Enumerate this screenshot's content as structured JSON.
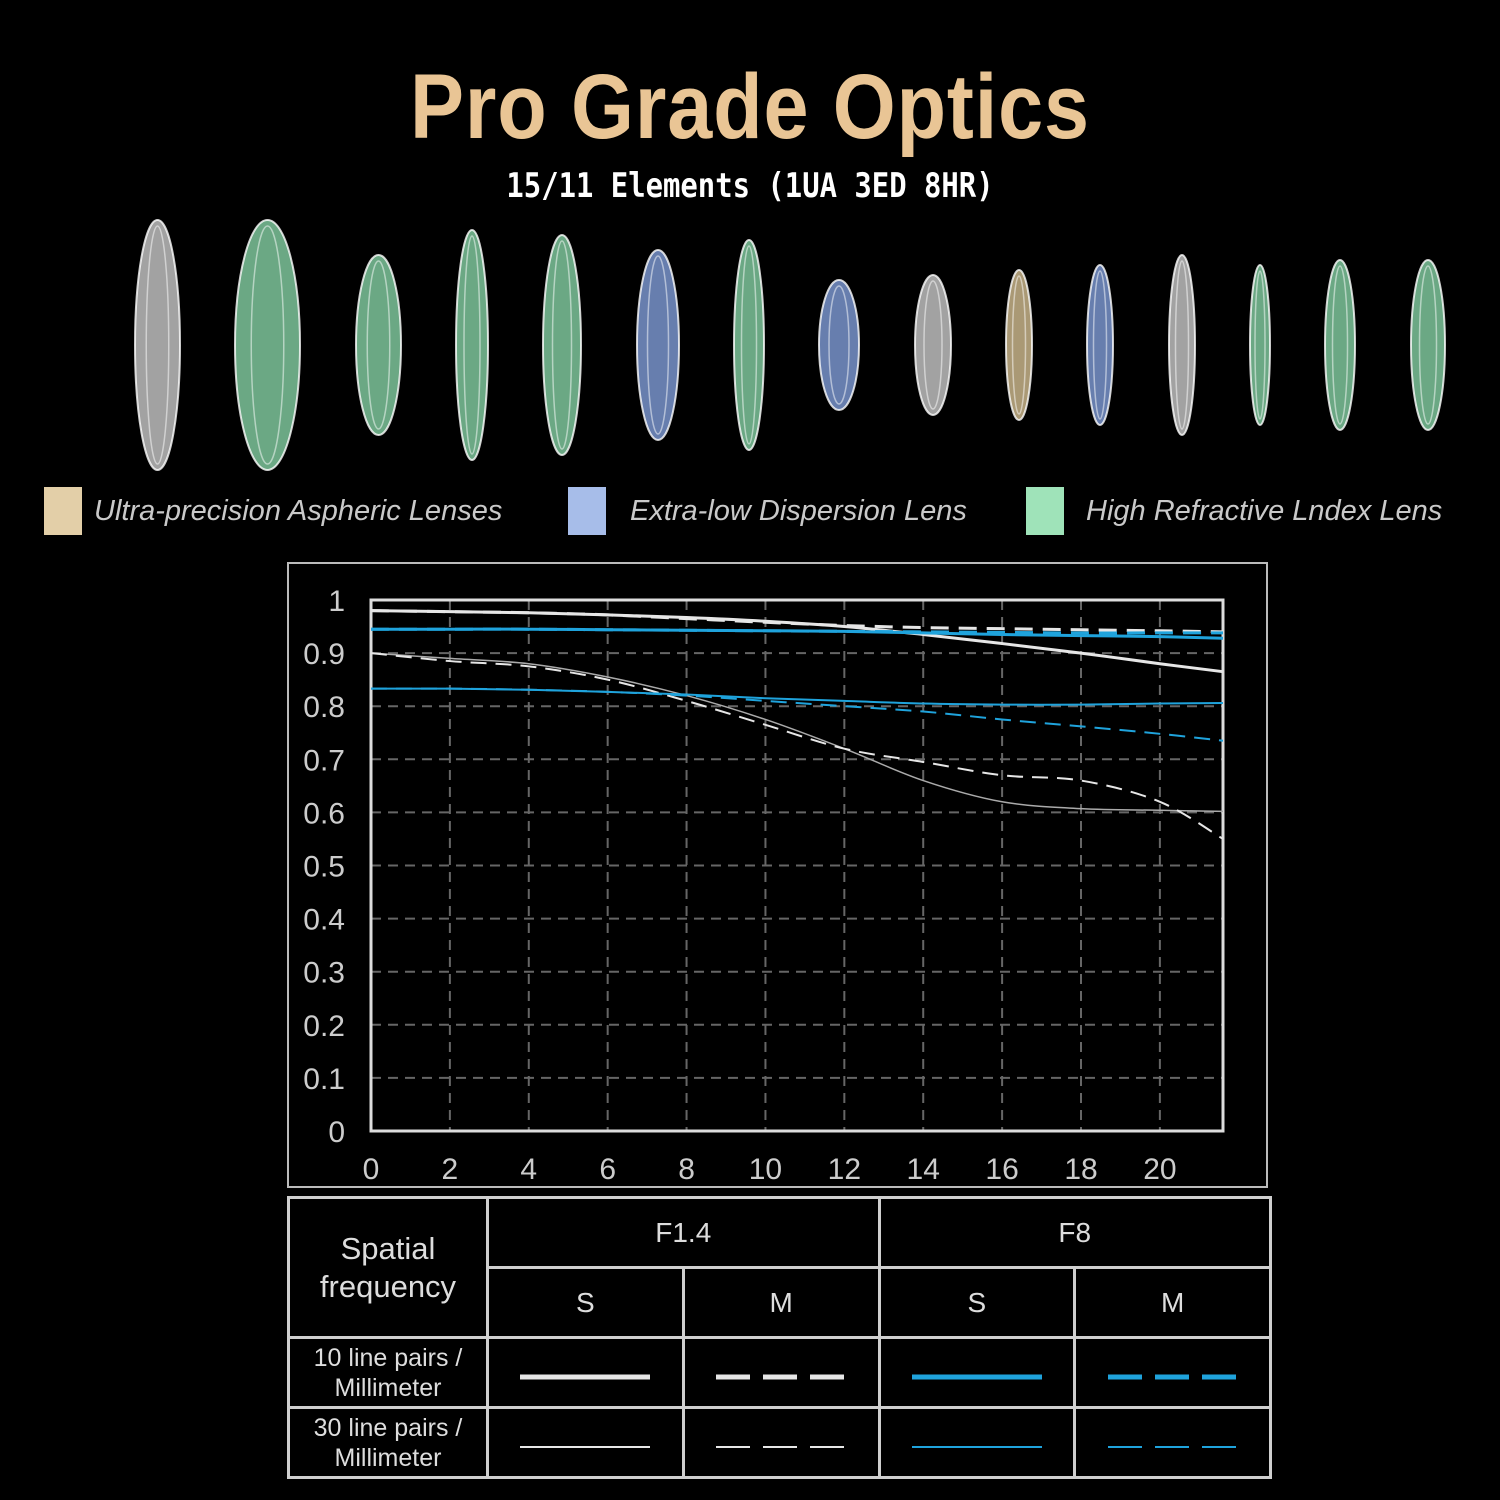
{
  "header": {
    "title": "Pro Grade Optics",
    "subtitle": "15/11 Elements (1UA 3ED 8HR)"
  },
  "lenses": [
    "clear",
    "green",
    "green",
    "green",
    "green",
    "blue",
    "green",
    "blue",
    "clear",
    "gold",
    "blue",
    "clear",
    "green",
    "green",
    "green"
  ],
  "colors": {
    "clear": "#d8d8d8",
    "green": "#8fe0b0",
    "blue": "#8aa8e8",
    "gold": "#e3cc9c",
    "title": "#e9c595",
    "line_white": "#e6e6e6",
    "line_blue": "#1fa3dc"
  },
  "legend": [
    {
      "label": "Ultra-precision Aspheric Lenses",
      "color": "#e3cfa8"
    },
    {
      "label": "Extra-low Dispersion Lens",
      "color": "#a7bde9"
    },
    {
      "label": "High Refractive Lndex Lens",
      "color": "#9fe3b9"
    }
  ],
  "chart_data": {
    "type": "line",
    "title": "",
    "xlabel": "",
    "ylabel": "",
    "xlim": [
      0,
      21.6
    ],
    "ylim": [
      0,
      1
    ],
    "xticks": [
      "0",
      "2",
      "4",
      "6",
      "8",
      "10",
      "12",
      "14",
      "16",
      "18",
      "20"
    ],
    "yticks": [
      "0",
      "0.1",
      "0.2",
      "0.3",
      "0.4",
      "0.5",
      "0.6",
      "0.7",
      "0.8",
      "0.9",
      "1"
    ],
    "grid": true,
    "x": [
      0,
      2,
      4,
      6,
      8,
      10,
      12,
      14,
      16,
      18,
      20,
      21.6
    ],
    "series": [
      {
        "name": "F1.4 S 10 lp/mm",
        "color": "#e6e6e6",
        "dash": false,
        "width": 3,
        "values": [
          0.98,
          0.978,
          0.976,
          0.972,
          0.967,
          0.96,
          0.95,
          0.935,
          0.918,
          0.9,
          0.88,
          0.865
        ]
      },
      {
        "name": "F1.4 M 10 lp/mm",
        "color": "#e6e6e6",
        "dash": true,
        "width": 3,
        "values": [
          0.98,
          0.978,
          0.976,
          0.972,
          0.965,
          0.958,
          0.952,
          0.948,
          0.946,
          0.944,
          0.942,
          0.94
        ]
      },
      {
        "name": "F8 S 10 lp/mm",
        "color": "#1fa3dc",
        "dash": false,
        "width": 3,
        "values": [
          0.945,
          0.945,
          0.945,
          0.944,
          0.943,
          0.942,
          0.941,
          0.938,
          0.935,
          0.933,
          0.931,
          0.928
        ]
      },
      {
        "name": "F8 M 10 lp/mm",
        "color": "#1fa3dc",
        "dash": true,
        "width": 3,
        "values": [
          0.945,
          0.945,
          0.945,
          0.944,
          0.943,
          0.942,
          0.941,
          0.94,
          0.939,
          0.938,
          0.938,
          0.938
        ]
      },
      {
        "name": "F1.4 S 30 lp/mm",
        "color": "#aaaaaa",
        "dash": false,
        "width": 1.5,
        "values": [
          0.9,
          0.89,
          0.88,
          0.855,
          0.82,
          0.775,
          0.72,
          0.66,
          0.62,
          0.607,
          0.604,
          0.602
        ]
      },
      {
        "name": "F1.4 M 30 lp/mm",
        "color": "#e6e6e6",
        "dash": true,
        "width": 2,
        "values": [
          0.9,
          0.885,
          0.875,
          0.85,
          0.81,
          0.765,
          0.72,
          0.695,
          0.67,
          0.66,
          0.62,
          0.55
        ]
      },
      {
        "name": "F8 S 30 lp/mm",
        "color": "#1fa3dc",
        "dash": false,
        "width": 2,
        "values": [
          0.833,
          0.833,
          0.831,
          0.827,
          0.822,
          0.815,
          0.81,
          0.805,
          0.803,
          0.803,
          0.805,
          0.806
        ]
      },
      {
        "name": "F8 M 30 lp/mm",
        "color": "#1fa3dc",
        "dash": true,
        "width": 2,
        "values": [
          0.833,
          0.833,
          0.831,
          0.827,
          0.82,
          0.81,
          0.8,
          0.79,
          0.775,
          0.762,
          0.748,
          0.735
        ]
      }
    ]
  },
  "key_table": {
    "header": "Spatial frequency",
    "apertures": [
      "F1.4",
      "F8"
    ],
    "sub": [
      "S",
      "M",
      "S",
      "M"
    ],
    "rows": [
      "10 line pairs / Millimeter",
      "30 line pairs / Millimeter"
    ]
  }
}
